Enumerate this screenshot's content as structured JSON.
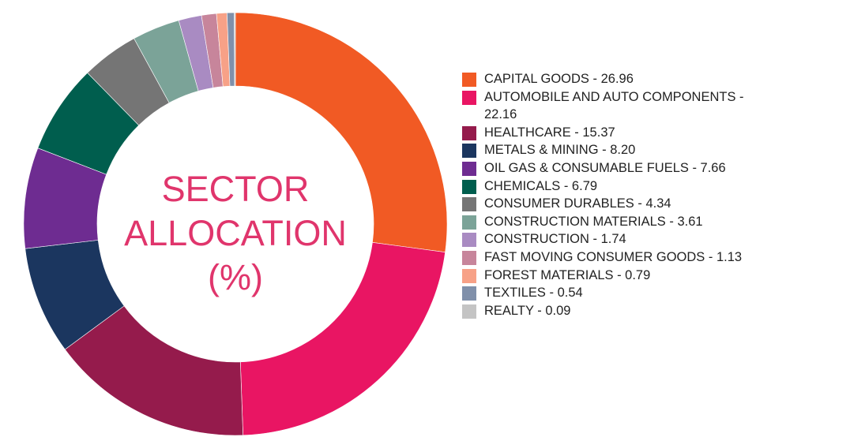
{
  "chart_data": {
    "type": "pie",
    "variant": "donut",
    "title": "SECTOR ALLOCATION (%)",
    "title_lines": [
      "SECTOR",
      "ALLOCATION",
      "(%)"
    ],
    "start": "top",
    "direction": "clockwise",
    "legend_position": "right",
    "slices": [
      {
        "label": "CAPITAL GOODS",
        "value": 26.96,
        "display": "CAPITAL GOODS - 26.96",
        "color": "#F15A24"
      },
      {
        "label": "AUTOMOBILE AND AUTO COMPONENTS",
        "value": 22.16,
        "display": "AUTOMOBILE AND AUTO COMPONENTS - 22.16",
        "color": "#E91563"
      },
      {
        "label": "HEALTHCARE",
        "value": 15.37,
        "display": "HEALTHCARE - 15.37",
        "color": "#951B4C"
      },
      {
        "label": "METALS & MINING",
        "value": 8.2,
        "display": "METALS & MINING - 8.20",
        "color": "#1B365F"
      },
      {
        "label": "OIL GAS & CONSUMABLE FUELS",
        "value": 7.66,
        "display": "OIL GAS & CONSUMABLE FUELS - 7.66",
        "color": "#6E2C91"
      },
      {
        "label": "CHEMICALS",
        "value": 6.79,
        "display": "CHEMICALS - 6.79",
        "color": "#005E4E"
      },
      {
        "label": "CONSUMER DURABLES",
        "value": 4.34,
        "display": "CONSUMER DURABLES - 4.34",
        "color": "#757575"
      },
      {
        "label": "CONSTRUCTION MATERIALS",
        "value": 3.61,
        "display": "CONSTRUCTION MATERIALS - 3.61",
        "color": "#7BA398"
      },
      {
        "label": "CONSTRUCTION",
        "value": 1.74,
        "display": "CONSTRUCTION - 1.74",
        "color": "#A98BC2"
      },
      {
        "label": "FAST MOVING CONSUMER GOODS",
        "value": 1.13,
        "display": "FAST MOVING CONSUMER GOODS - 1.13",
        "color": "#C7859B"
      },
      {
        "label": "FOREST MATERIALS",
        "value": 0.79,
        "display": "FOREST MATERIALS - 0.79",
        "color": "#F7A187"
      },
      {
        "label": "TEXTILES",
        "value": 0.54,
        "display": "TEXTILES - 0.54",
        "color": "#8090AA"
      },
      {
        "label": "REALTY",
        "value": 0.09,
        "display": "REALTY - 0.09",
        "color": "#C4C4C4"
      }
    ]
  }
}
